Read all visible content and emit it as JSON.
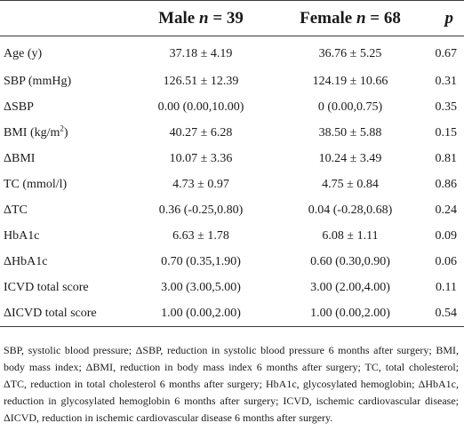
{
  "header": {
    "col1": "",
    "male_word": "Male",
    "male_n": "n",
    "male_eq": " = 39",
    "female_word": "Female",
    "female_n": "n",
    "female_eq": " = 68",
    "p": "p"
  },
  "rows": [
    {
      "label": "Age (y)",
      "male": "37.18 ± 4.19",
      "female": "36.76 ± 5.25",
      "p": "0.67"
    },
    {
      "label": "SBP (mmHg)",
      "male": "126.51 ± 12.39",
      "female": "124.19 ± 10.66",
      "p": "0.31"
    },
    {
      "label": "ΔSBP",
      "male": "0.00 (0.00,10.00)",
      "female": "0 (0.00,0.75)",
      "p": "0.35"
    },
    {
      "label": "BMI (kg/m",
      "label_sup": "2",
      "label_end": ")",
      "male": "40.27 ± 6.28",
      "female": "38.50 ± 5.88",
      "p": "0.15"
    },
    {
      "label": "ΔBMI",
      "male": "10.07 ± 3.36",
      "female": "10.24 ± 3.49",
      "p": "0.81"
    },
    {
      "label": "TC (mmol/l)",
      "male": "4.73 ± 0.97",
      "female": "4.75 ± 0.84",
      "p": "0.86"
    },
    {
      "label": "ΔTC",
      "male": "0.36 (-0.25,0.80)",
      "female": "0.04 (-0.28,0.68)",
      "p": "0.24"
    },
    {
      "label": "HbA1c",
      "male": "6.63 ± 1.78",
      "female": "6.08 ± 1.11",
      "p": "0.09"
    },
    {
      "label": "ΔHbA1c",
      "male": "0.70 (0.35,1.90)",
      "female": "0.60 (0.30,0.90)",
      "p": "0.06"
    },
    {
      "label": "ICVD total score",
      "male": "3.00 (3.00,5.00)",
      "female": "3.00 (2.00,4.00)",
      "p": "0.11"
    },
    {
      "label": "ΔICVD total score",
      "male": "1.00 (0.00,2.00)",
      "female": "1.00 (0.00,2.00)",
      "p": "0.54"
    }
  ],
  "footnote": "SBP, systolic blood pressure; ΔSBP, reduction in systolic blood pressure 6 months after surgery; BMI, body mass index; ΔBMI, reduction in body mass index 6 months after surgery; TC, total cholesterol; ΔTC, reduction in total cholesterol 6 months after surgery; HbA1c, glycosylated hemoglobin; ΔHbA1c, reduction in glycosylated hemoglobin 6 months after surgery; ICVD, ischemic cardiovascular disease; ΔICVD, reduction in ischemic cardiovascular disease 6 months after surgery."
}
